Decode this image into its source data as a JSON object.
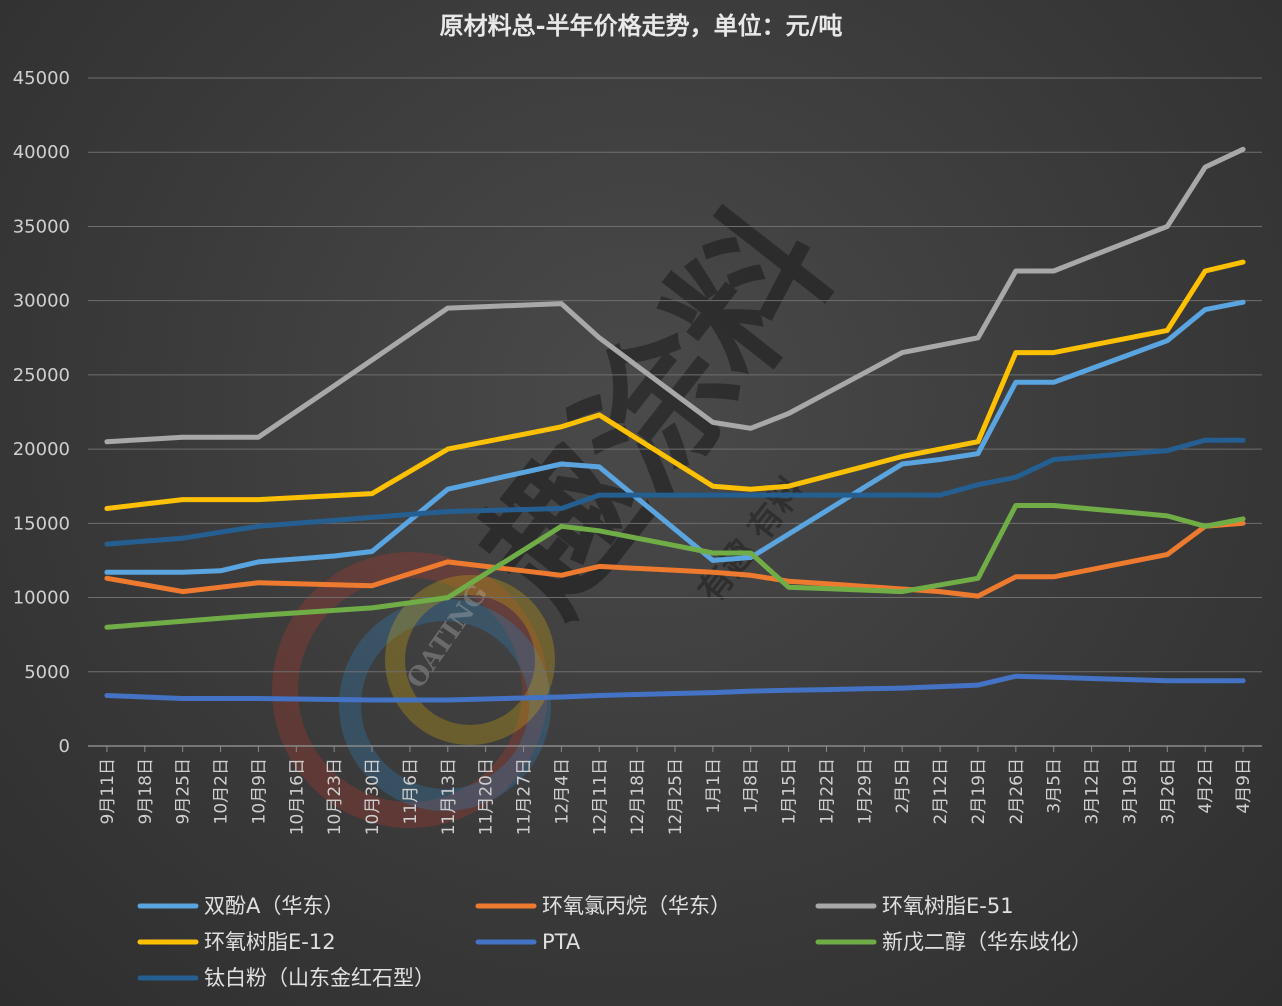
{
  "chart_data": {
    "type": "line",
    "title": "原材料总-半年价格走势，单位：元/吨",
    "xlabel": "",
    "ylabel": "",
    "ylim": [
      0,
      45000
    ],
    "yticks": [
      0,
      5000,
      10000,
      15000,
      20000,
      25000,
      30000,
      35000,
      40000,
      45000
    ],
    "grid": true,
    "legend_position": "bottom",
    "categories": [
      "9月11日",
      "9月18日",
      "9月25日",
      "10月2日",
      "10月9日",
      "10月16日",
      "10月23日",
      "10月30日",
      "11月6日",
      "11月13日",
      "11月20日",
      "11月27日",
      "12月4日",
      "12月11日",
      "12月18日",
      "12月25日",
      "1月1日",
      "1月8日",
      "1月15日",
      "1月22日",
      "1月29日",
      "2月5日",
      "2月12日",
      "2月19日",
      "2月26日",
      "3月5日",
      "3月12日",
      "3月19日",
      "3月26日",
      "4月2日",
      "4月9日"
    ],
    "series": [
      {
        "name": "双酚A（华东）",
        "color": "#5aa5e0",
        "values": [
          11700,
          null,
          11700,
          11800,
          12400,
          null,
          12800,
          13100,
          null,
          17300,
          null,
          null,
          19000,
          18800,
          null,
          null,
          12500,
          12700,
          null,
          null,
          null,
          19000,
          19300,
          19700,
          24500,
          24500,
          null,
          null,
          27300,
          29400,
          29900
        ]
      },
      {
        "name": "环氧氯丙烷（华东）",
        "color": "#ee7a2f",
        "values": [
          11300,
          null,
          10400,
          null,
          11000,
          null,
          null,
          10800,
          null,
          12400,
          null,
          null,
          11500,
          12100,
          null,
          null,
          11700,
          11500,
          11100,
          null,
          null,
          null,
          10400,
          10100,
          11400,
          11400,
          null,
          null,
          12900,
          14800,
          15000
        ]
      },
      {
        "name": "环氧树脂E-51",
        "color": "#a8a8a8",
        "values": [
          20500,
          null,
          20800,
          20800,
          20800,
          null,
          null,
          26000,
          null,
          29500,
          null,
          null,
          29800,
          27500,
          null,
          null,
          21800,
          21400,
          22400,
          null,
          null,
          26500,
          null,
          27500,
          32000,
          32000,
          null,
          null,
          35000,
          39000,
          40200
        ]
      },
      {
        "name": "环氧树脂E-12",
        "color": "#ffc000",
        "values": [
          16000,
          null,
          16600,
          16600,
          16600,
          null,
          null,
          17000,
          null,
          20000,
          null,
          null,
          21500,
          22300,
          null,
          null,
          17500,
          17300,
          17500,
          null,
          null,
          19500,
          null,
          20500,
          26500,
          26500,
          null,
          null,
          28000,
          32000,
          32600
        ]
      },
      {
        "name": "PTA",
        "color": "#4472c4",
        "values": [
          3400,
          null,
          3200,
          null,
          3200,
          null,
          null,
          3100,
          null,
          3100,
          null,
          null,
          3300,
          3400,
          null,
          null,
          3600,
          3700,
          null,
          null,
          null,
          3900,
          null,
          4100,
          4700,
          null,
          null,
          null,
          4400,
          4400,
          4400
        ]
      },
      {
        "name": "新戊二醇（华东歧化）",
        "color": "#70ad47",
        "values": [
          8000,
          null,
          8400,
          null,
          8800,
          null,
          null,
          9300,
          null,
          10000,
          null,
          null,
          14800,
          14500,
          null,
          null,
          13000,
          13000,
          10700,
          null,
          null,
          10400,
          null,
          11300,
          16200,
          16200,
          null,
          null,
          15500,
          14800,
          15300
        ]
      },
      {
        "name": "钛白粉（山东金红石型）",
        "color": "#255e91",
        "values": [
          13600,
          null,
          14000,
          null,
          14800,
          null,
          null,
          15400,
          null,
          15800,
          null,
          null,
          16000,
          16900,
          null,
          null,
          16900,
          16900,
          16900,
          null,
          null,
          16900,
          16900,
          17600,
          18100,
          19300,
          null,
          null,
          19900,
          20600,
          20600
        ]
      }
    ]
  },
  "watermark": {
    "main_text": "趣涂料",
    "sub_text": "有趣 有料",
    "logo_text": "OATING"
  }
}
